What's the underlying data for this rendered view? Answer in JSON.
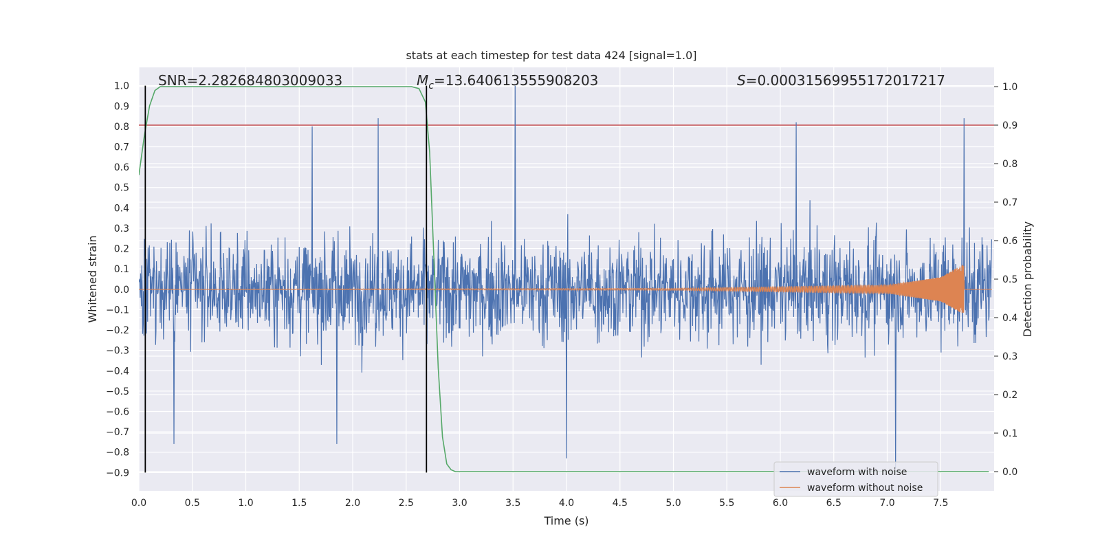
{
  "chart_data": {
    "type": "line",
    "title": "stats at each timestep for test data 424 [signal=1.0]",
    "xlabel": "Time (s)",
    "ylabel_left": "Whitened strain",
    "ylabel_right": "Detection probability",
    "xlim": [
      0.0,
      8.0
    ],
    "ylim_left": [
      -0.99,
      1.09
    ],
    "ylim_right": [
      -0.05,
      1.05
    ],
    "x_ticks": [
      0.0,
      0.5,
      1.0,
      1.5,
      2.0,
      2.5,
      3.0,
      3.5,
      4.0,
      4.5,
      5.0,
      5.5,
      6.0,
      6.5,
      7.0,
      7.5
    ],
    "y_left_ticks": [
      -0.9,
      -0.8,
      -0.7,
      -0.6,
      -0.5,
      -0.4,
      -0.3,
      -0.2,
      -0.1,
      0.0,
      0.1,
      0.2,
      0.3,
      0.4,
      0.5,
      0.6,
      0.7,
      0.8,
      0.9,
      1.0
    ],
    "y_right_ticks": [
      0.0,
      0.1,
      0.2,
      0.3,
      0.4,
      0.5,
      0.6,
      0.7,
      0.8,
      0.9,
      1.0
    ],
    "grid": true,
    "legend_position": "lower-right",
    "annotations": {
      "snr": "SNR=2.282684803009033",
      "mc_prefix": "M",
      "mc_sub": "c",
      "mc_value": "=13.640613555908203",
      "s_prefix": "S",
      "s_value": "=0.00031569955172017217"
    },
    "series": [
      {
        "name": "waveform with noise",
        "color": "#4c72b0",
        "axis": "left",
        "sample_rate_hz": 256,
        "amplitude_typical": 0.35,
        "max_value": 1.0,
        "min_value": -0.9,
        "notable_peaks": [
          {
            "x": 3.52,
            "y": 1.0
          },
          {
            "x": 2.24,
            "y": 0.84
          },
          {
            "x": 6.15,
            "y": 0.82
          },
          {
            "x": 7.72,
            "y": 0.84
          },
          {
            "x": 1.62,
            "y": 0.8
          },
          {
            "x": 7.08,
            "y": -0.88
          },
          {
            "x": 4.0,
            "y": -0.83
          },
          {
            "x": 0.33,
            "y": -0.76
          },
          {
            "x": 1.85,
            "y": -0.76
          }
        ]
      },
      {
        "name": "waveform without noise",
        "color": "#dd8452",
        "axis": "left",
        "description_points": [
          {
            "x": 0.0,
            "y": 0.0
          },
          {
            "x": 5.0,
            "y": 0.005
          },
          {
            "x": 7.0,
            "y": 0.02
          },
          {
            "x": 7.5,
            "y": 0.06
          },
          {
            "x": 7.72,
            "y": 0.125
          },
          {
            "x": 7.73,
            "y": 0.0
          },
          {
            "x": 8.0,
            "y": 0.0
          }
        ]
      },
      {
        "name": "detection probability",
        "color": "#55a868",
        "axis": "right",
        "x": [
          0.0,
          0.05,
          0.1,
          0.15,
          0.2,
          0.3,
          0.4,
          0.6,
          1.0,
          1.5,
          2.0,
          2.4,
          2.55,
          2.62,
          2.68,
          2.72,
          2.76,
          2.8,
          2.84,
          2.88,
          2.92,
          2.96,
          3.1,
          7.95
        ],
        "values": [
          0.77,
          0.87,
          0.95,
          0.99,
          1.0,
          1.0,
          1.0,
          1.0,
          1.0,
          1.0,
          1.0,
          1.0,
          1.0,
          0.995,
          0.96,
          0.83,
          0.55,
          0.27,
          0.09,
          0.02,
          0.005,
          0.0,
          0.0,
          0.0
        ]
      }
    ],
    "reference_lines": [
      {
        "type": "horizontal",
        "axis": "right",
        "value": 0.9,
        "color": "#c44e52"
      },
      {
        "type": "vertical",
        "x": 0.06,
        "color": "#000000"
      },
      {
        "type": "vertical",
        "x": 2.69,
        "color": "#000000"
      }
    ],
    "legend": [
      {
        "label": "waveform with noise",
        "color": "#4c72b0"
      },
      {
        "label": "waveform without noise",
        "color": "#dd8452"
      }
    ]
  }
}
